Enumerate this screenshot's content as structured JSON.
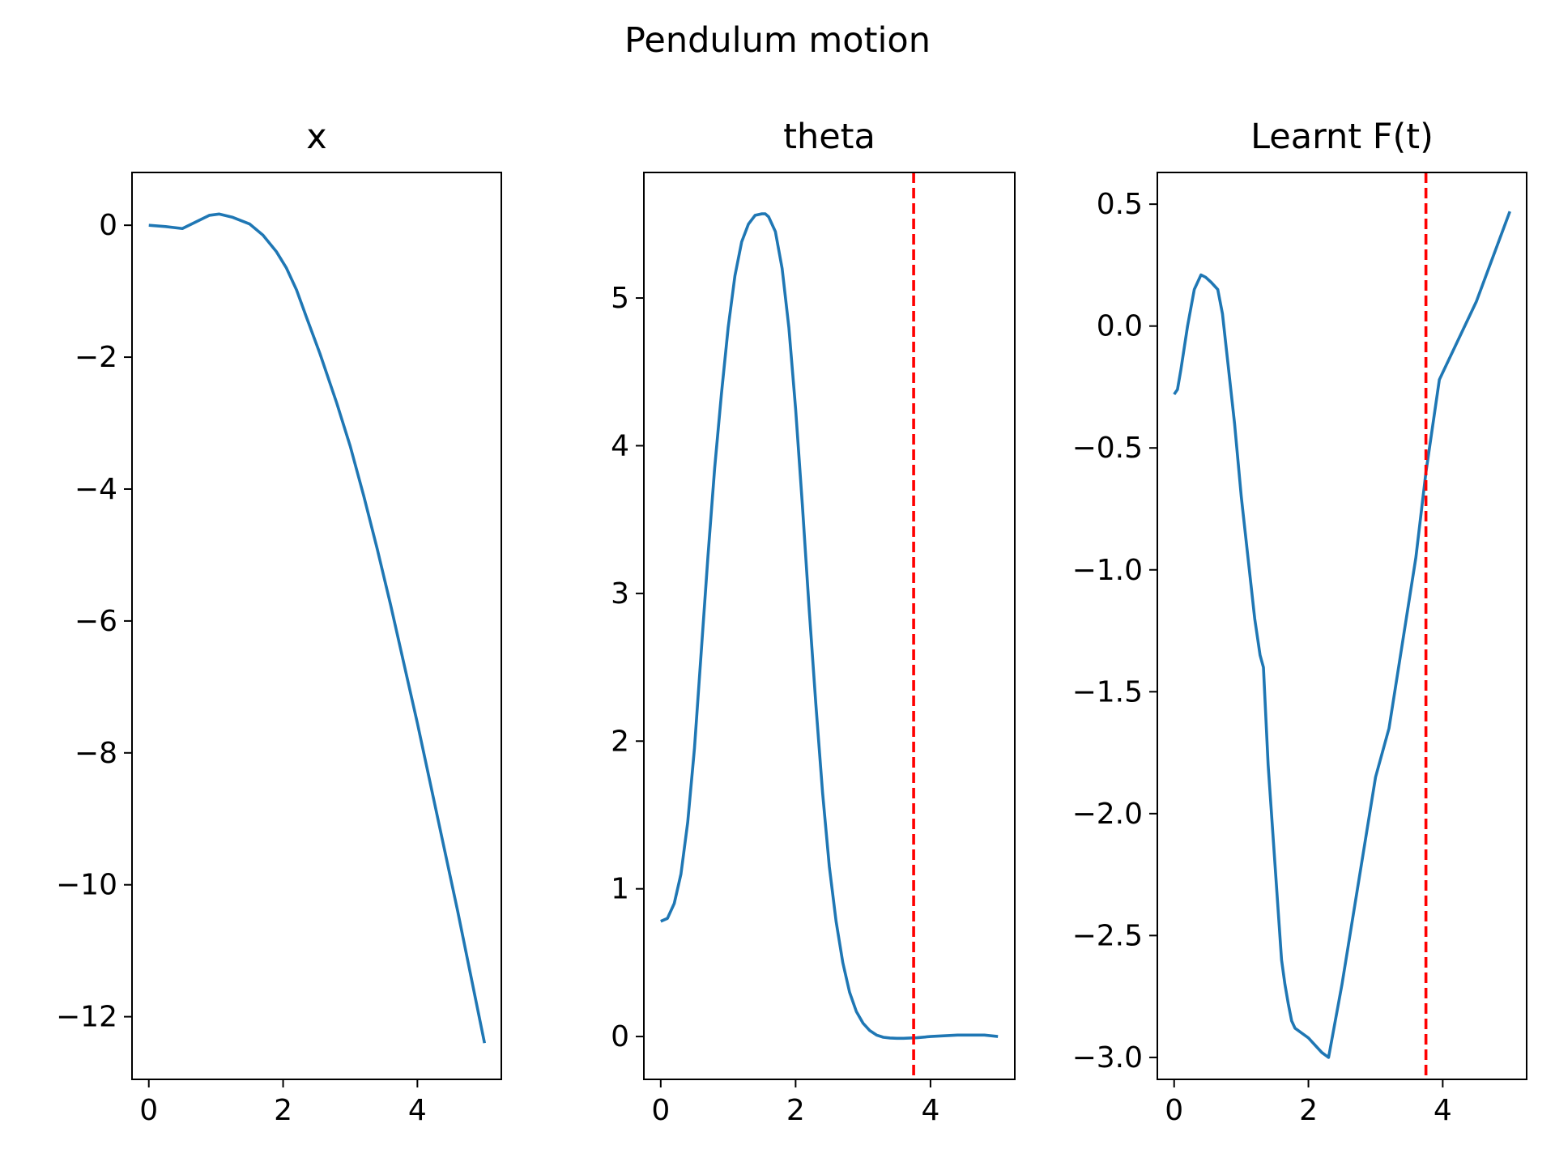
{
  "figure": {
    "suptitle": "Pendulum motion"
  },
  "style": {
    "line_color": "#1f77b4",
    "marker_color": "#ff0000",
    "axis_color": "#000000",
    "background": "#ffffff"
  },
  "chart_data": [
    {
      "type": "line",
      "title": "x",
      "xlabel": "",
      "ylabel": "",
      "xlim": [
        -0.25,
        5.25
      ],
      "ylim": [
        -12.95,
        0.8
      ],
      "xticks": [
        0,
        2,
        4
      ],
      "yticks": [
        0,
        -2,
        -4,
        -6,
        -8,
        -10,
        -12
      ],
      "grid": false,
      "series": [
        {
          "x": [
            0,
            0.25,
            0.5,
            0.7,
            0.9,
            1.05,
            1.25,
            1.5,
            1.7,
            1.9,
            2.05,
            2.2,
            2.35,
            2.55,
            2.8,
            3.0,
            3.2,
            3.4,
            3.6,
            3.8,
            4.0,
            4.2,
            4.4,
            4.6,
            4.8,
            5.0
          ],
          "y": [
            0,
            -0.02,
            -0.05,
            0.05,
            0.15,
            0.17,
            0.12,
            0.02,
            -0.15,
            -0.4,
            -0.65,
            -0.98,
            -1.4,
            -1.95,
            -2.7,
            -3.35,
            -4.1,
            -4.9,
            -5.75,
            -6.65,
            -7.55,
            -8.5,
            -9.45,
            -10.4,
            -11.4,
            -12.4
          ]
        }
      ],
      "vline": null
    },
    {
      "type": "line",
      "title": "theta",
      "xlabel": "",
      "ylabel": "",
      "xlim": [
        -0.25,
        5.25
      ],
      "ylim": [
        -0.29,
        5.85
      ],
      "xticks": [
        0,
        2,
        4
      ],
      "yticks": [
        0,
        1,
        2,
        3,
        4,
        5
      ],
      "grid": false,
      "series": [
        {
          "x": [
            0,
            0.1,
            0.2,
            0.3,
            0.4,
            0.5,
            0.6,
            0.7,
            0.8,
            0.9,
            1.0,
            1.1,
            1.2,
            1.3,
            1.4,
            1.5,
            1.55,
            1.6,
            1.7,
            1.8,
            1.9,
            2.0,
            2.1,
            2.2,
            2.3,
            2.4,
            2.5,
            2.6,
            2.7,
            2.8,
            2.9,
            3.0,
            3.1,
            3.2,
            3.3,
            3.4,
            3.5,
            3.6,
            3.7,
            3.8,
            4.0,
            4.4,
            4.8,
            5.0
          ],
          "y": [
            0.78,
            0.8,
            0.9,
            1.1,
            1.45,
            1.95,
            2.6,
            3.25,
            3.85,
            4.35,
            4.8,
            5.15,
            5.38,
            5.5,
            5.56,
            5.57,
            5.57,
            5.55,
            5.45,
            5.2,
            4.8,
            4.25,
            3.6,
            2.9,
            2.25,
            1.65,
            1.15,
            0.78,
            0.5,
            0.3,
            0.17,
            0.09,
            0.04,
            0.01,
            -0.005,
            -0.01,
            -0.012,
            -0.012,
            -0.01,
            -0.008,
            0.0,
            0.01,
            0.01,
            0.0
          ]
        }
      ],
      "vline": {
        "x": 3.75,
        "style": "dashed"
      }
    },
    {
      "type": "line",
      "title": "Learnt F(t)",
      "xlabel": "",
      "ylabel": "",
      "xlim": [
        -0.25,
        5.25
      ],
      "ylim": [
        -3.09,
        0.63
      ],
      "xticks": [
        0,
        2,
        4
      ],
      "yticks": [
        0.5,
        0.0,
        -0.5,
        -1.0,
        -1.5,
        -2.0,
        -2.5,
        -3.0
      ],
      "ytick_labels": [
        "0.5",
        "0.0",
        "−0.5",
        "−1.0",
        "−1.5",
        "−2.0",
        "−2.5",
        "−3.0"
      ],
      "grid": false,
      "series": [
        {
          "x": [
            0,
            0.05,
            0.1,
            0.2,
            0.3,
            0.4,
            0.47,
            0.55,
            0.65,
            0.72,
            0.8,
            0.9,
            1.0,
            1.1,
            1.2,
            1.28,
            1.33,
            1.4,
            1.5,
            1.6,
            1.65,
            1.7,
            1.75,
            1.8,
            1.9,
            2.0,
            2.1,
            2.2,
            2.3,
            2.5,
            3.0,
            3.2,
            3.6,
            3.75,
            3.95,
            4.5,
            5.0
          ],
          "y": [
            -0.28,
            -0.26,
            -0.18,
            0.0,
            0.15,
            0.21,
            0.2,
            0.18,
            0.15,
            0.05,
            -0.15,
            -0.4,
            -0.7,
            -0.95,
            -1.2,
            -1.35,
            -1.4,
            -1.8,
            -2.2,
            -2.6,
            -2.7,
            -2.78,
            -2.85,
            -2.88,
            -2.9,
            -2.92,
            -2.95,
            -2.98,
            -3.0,
            -2.7,
            -1.85,
            -1.65,
            -0.95,
            -0.6,
            -0.22,
            0.1,
            0.47
          ]
        }
      ],
      "vline": {
        "x": 3.75,
        "style": "dashed"
      }
    }
  ]
}
